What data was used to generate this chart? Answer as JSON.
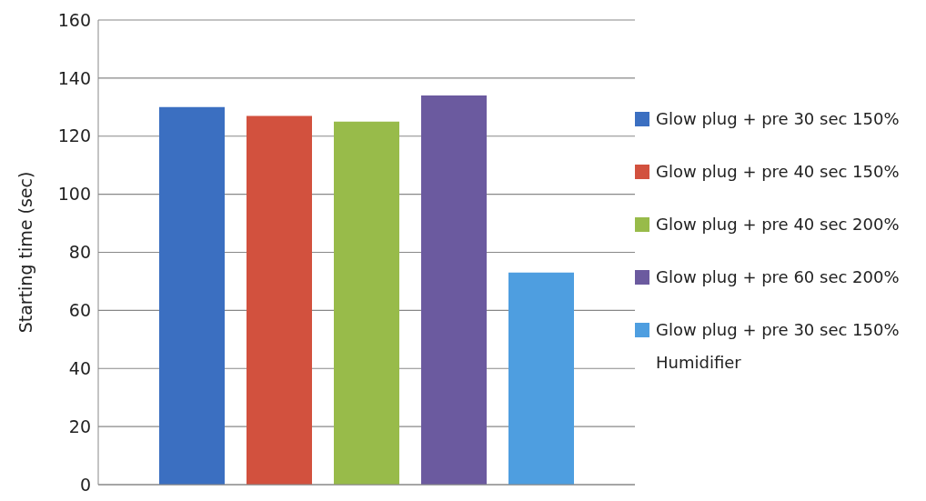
{
  "chart_data": {
    "type": "bar",
    "ylabel": "Starting time (sec)",
    "categories": [
      null
    ],
    "series": [
      {
        "name": "Glow plug + pre 30 sec 150%",
        "color": "#3b6fc1",
        "values": [
          130
        ]
      },
      {
        "name": "Glow plug + pre 40 sec 150%",
        "color": "#d2513e",
        "values": [
          127
        ]
      },
      {
        "name": "Glow plug + pre 40 sec 200%",
        "color": "#98bb4a",
        "values": [
          125
        ]
      },
      {
        "name": "Glow plug + pre 60 sec 200%",
        "color": "#6b5a9f",
        "values": [
          134
        ]
      },
      {
        "name": "Glow plug + pre 30 sec 150% Humidifier",
        "color": "#4e9ee0",
        "values": [
          73
        ]
      }
    ],
    "ylim": [
      0,
      160
    ],
    "yticks": [
      0,
      20,
      40,
      60,
      80,
      100,
      120,
      140,
      160
    ],
    "grid": "y",
    "legend": "right"
  }
}
